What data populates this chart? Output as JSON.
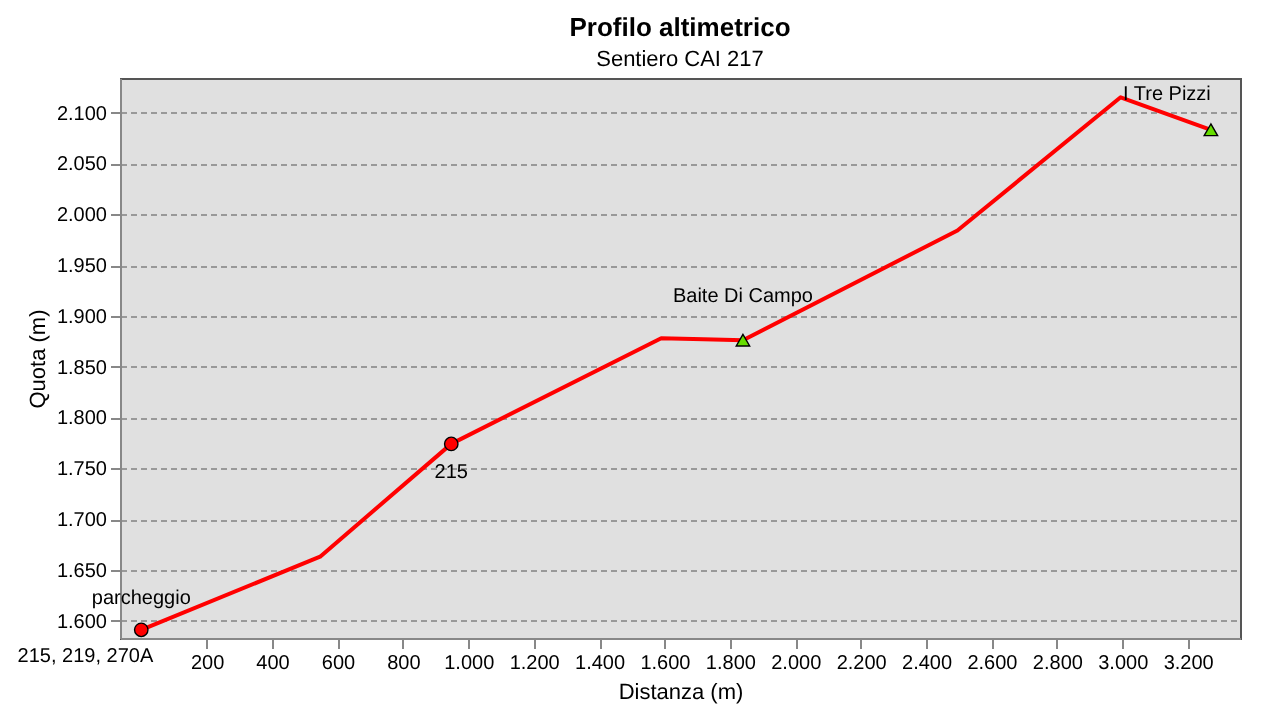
{
  "chart_data": {
    "type": "line",
    "title": "Profilo altimetrico",
    "subtitle": "Sentiero CAI 217",
    "xlabel": "Distanza (m)",
    "ylabel": "Quota (m)",
    "series": [
      {
        "type": "line",
        "color": "#ff0000",
        "x": [
          0,
          547,
          948,
          1590,
          1720,
          1840,
          2496,
          2995,
          3271
        ],
        "values": [
          1591,
          1663,
          1774,
          1878,
          1877,
          1876,
          1984,
          2115,
          2083
        ]
      },
      {
        "type": "scatter",
        "color": "#ff0000",
        "marker": "circle",
        "x": [
          0,
          948
        ],
        "values": [
          1591,
          1774
        ]
      },
      {
        "type": "scatter",
        "color": "#66dd00",
        "marker": "triangle",
        "x": [
          1840,
          3271
        ],
        "values": [
          1876,
          2083
        ]
      }
    ],
    "annotations": [
      {
        "text": "parcheggio",
        "x": 0,
        "y": 1591
      },
      {
        "text": "215, 219, 270A",
        "x": 0,
        "y": 1591
      },
      {
        "text": "215",
        "x": 948,
        "y": 1774
      },
      {
        "text": "Baite Di Campo",
        "x": 1840,
        "y": 1876
      },
      {
        "text": "I Tre Pizzi",
        "x": 3271,
        "y": 2083
      }
    ],
    "xlim": [
      -65,
      3360
    ],
    "ylim": [
      1583,
      2134
    ],
    "xticks": [
      {
        "value": 200,
        "label": "200"
      },
      {
        "value": 400,
        "label": "400"
      },
      {
        "value": 600,
        "label": "600"
      },
      {
        "value": 800,
        "label": "800"
      },
      {
        "value": 1000,
        "label": "1.000"
      },
      {
        "value": 1200,
        "label": "1.200"
      },
      {
        "value": 1400,
        "label": "1.400"
      },
      {
        "value": 1600,
        "label": "1.600"
      },
      {
        "value": 1800,
        "label": "1.800"
      },
      {
        "value": 2000,
        "label": "2.000"
      },
      {
        "value": 2200,
        "label": "2.200"
      },
      {
        "value": 2400,
        "label": "2.400"
      },
      {
        "value": 2600,
        "label": "2.600"
      },
      {
        "value": 2800,
        "label": "2.800"
      },
      {
        "value": 3000,
        "label": "3.000"
      },
      {
        "value": 3200,
        "label": "3.200"
      }
    ],
    "yticks": [
      {
        "value": 1600,
        "label": "1.600"
      },
      {
        "value": 1650,
        "label": "1.650"
      },
      {
        "value": 1700,
        "label": "1.700"
      },
      {
        "value": 1750,
        "label": "1.750"
      },
      {
        "value": 1800,
        "label": "1.800"
      },
      {
        "value": 1850,
        "label": "1.850"
      },
      {
        "value": 1900,
        "label": "1.900"
      },
      {
        "value": 1950,
        "label": "1.950"
      },
      {
        "value": 2000,
        "label": "2.000"
      },
      {
        "value": 2050,
        "label": "2.050"
      },
      {
        "value": 2100,
        "label": "2.100"
      }
    ],
    "grid": "y",
    "line_style": "solid"
  }
}
